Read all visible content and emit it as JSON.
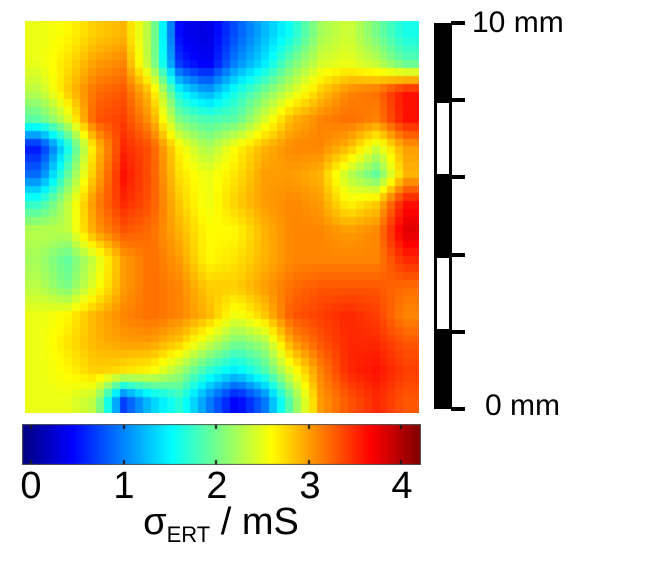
{
  "figure": {
    "background": "#ffffff",
    "scale_bar": {
      "top_label": "10 mm",
      "bottom_label": "0 mm",
      "length_mm": 10,
      "n_segments": 5,
      "segment_pattern": [
        "filled",
        "open",
        "filled",
        "open",
        "filled"
      ],
      "color": "#000000"
    },
    "colorbar": {
      "sigma": "σ",
      "sigma_sub": "ERT",
      "units_suffix": " / mS",
      "tick_labels": [
        "0",
        "1",
        "2",
        "3",
        "4"
      ],
      "colormap": "jet"
    }
  },
  "chart_data": {
    "type": "heatmap",
    "title": "",
    "value_label": "σ_ERT / mS",
    "colormap": "jet",
    "value_domain": [
      -0.1,
      4.2
    ],
    "colorbar_ticks": [
      0,
      1,
      2,
      3,
      4
    ],
    "x_extent_mm": [
      0,
      10
    ],
    "y_extent_mm": [
      0,
      10
    ],
    "scale_bar": {
      "min_label": "0 mm",
      "max_label": "10 mm"
    },
    "grid_rows": 14,
    "grid_cols": 14,
    "values_mS": [
      [
        2.5,
        2.6,
        2.8,
        2.9,
        2.2,
        0.4,
        0.3,
        0.8,
        1.2,
        1.6,
        2.2,
        2.4,
        2.0,
        1.6
      ],
      [
        2.5,
        2.7,
        3.0,
        3.1,
        2.2,
        0.6,
        0.35,
        1.0,
        1.4,
        2.0,
        2.4,
        2.5,
        2.3,
        1.9
      ],
      [
        2.3,
        2.8,
        3.2,
        3.3,
        2.8,
        1.5,
        1.1,
        1.6,
        2.0,
        2.4,
        2.8,
        3.1,
        3.2,
        3.6
      ],
      [
        1.9,
        2.4,
        3.3,
        3.4,
        3.0,
        2.0,
        1.8,
        1.9,
        2.4,
        2.9,
        3.1,
        3.2,
        3.1,
        3.6
      ],
      [
        0.5,
        1.5,
        2.8,
        3.5,
        3.3,
        2.6,
        2.2,
        2.6,
        2.9,
        3.1,
        3.1,
        2.9,
        2.4,
        3.0
      ],
      [
        0.9,
        1.9,
        2.9,
        3.6,
        3.3,
        2.7,
        2.5,
        2.7,
        3.0,
        3.0,
        2.9,
        2.3,
        1.9,
        2.9
      ],
      [
        1.7,
        2.3,
        3.1,
        3.5,
        3.3,
        2.8,
        2.5,
        2.8,
        3.0,
        3.1,
        3.0,
        2.6,
        2.8,
        3.6
      ],
      [
        2.3,
        2.3,
        3.0,
        3.3,
        3.2,
        2.9,
        2.6,
        2.6,
        2.9,
        3.1,
        3.1,
        3.0,
        3.1,
        3.8
      ],
      [
        2.2,
        1.9,
        2.4,
        3.0,
        3.2,
        3.0,
        2.6,
        2.7,
        2.9,
        3.1,
        3.1,
        3.1,
        3.1,
        3.5
      ],
      [
        2.3,
        2.0,
        2.5,
        3.0,
        3.2,
        3.1,
        2.8,
        2.8,
        3.0,
        3.2,
        3.3,
        3.3,
        3.3,
        3.2
      ],
      [
        2.5,
        2.6,
        2.9,
        3.1,
        3.2,
        3.1,
        2.9,
        2.5,
        2.8,
        3.3,
        3.4,
        3.5,
        3.4,
        3.1
      ],
      [
        2.5,
        2.7,
        2.9,
        3.0,
        3.0,
        2.8,
        2.4,
        2.0,
        2.2,
        3.0,
        3.3,
        3.5,
        3.5,
        3.3
      ],
      [
        2.5,
        2.6,
        2.8,
        2.7,
        2.6,
        2.2,
        1.7,
        1.4,
        1.8,
        2.5,
        3.1,
        3.5,
        3.6,
        3.4
      ],
      [
        2.5,
        2.5,
        2.3,
        0.7,
        1.3,
        1.7,
        1.0,
        0.4,
        0.9,
        2.0,
        3.0,
        3.3,
        3.5,
        3.3
      ]
    ]
  }
}
